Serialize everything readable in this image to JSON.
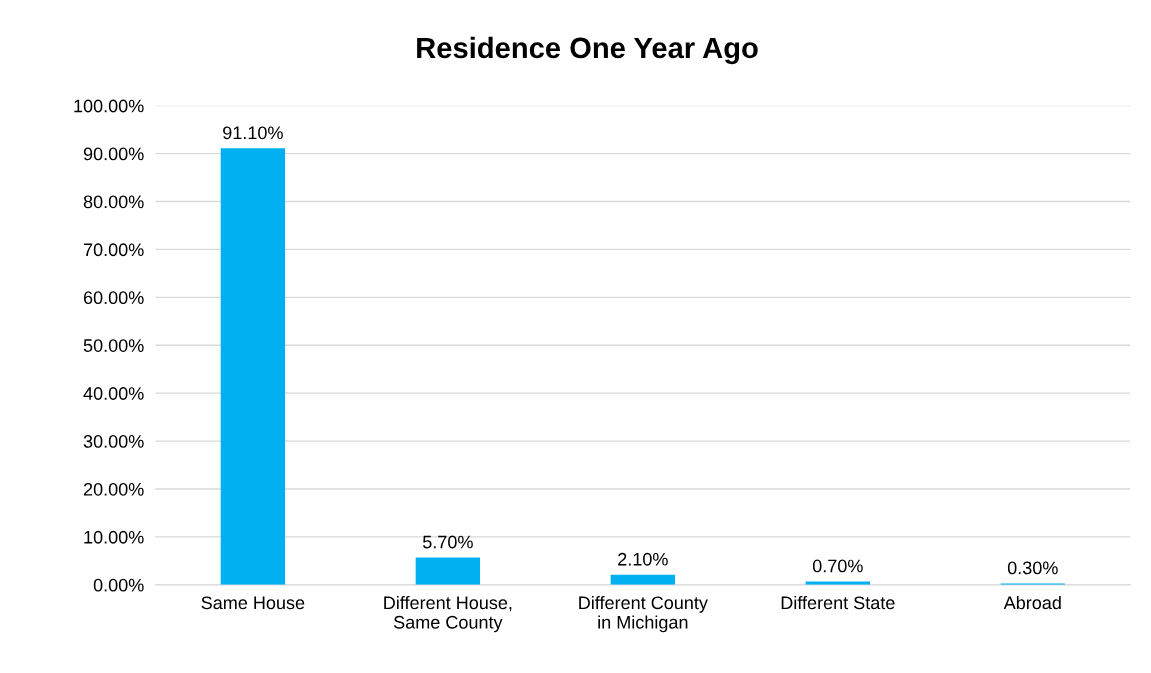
{
  "chart_data": {
    "type": "bar",
    "title": "Residence One Year Ago",
    "categories": [
      "Same House",
      "Different House,\nSame County",
      "Different County\nin Michigan",
      "Different State",
      "Abroad"
    ],
    "values": [
      91.1,
      5.7,
      2.1,
      0.7,
      0.3
    ],
    "value_labels": [
      "91.10%",
      "5.70%",
      "2.10%",
      "0.70%",
      "0.30%"
    ],
    "color": "#00b0f0",
    "ylim": [
      0,
      100
    ],
    "yticks": [
      {
        "value": 0,
        "label": "0.00%"
      },
      {
        "value": 10,
        "label": "10.00%"
      },
      {
        "value": 20,
        "label": "20.00%"
      },
      {
        "value": 30,
        "label": "30.00%"
      },
      {
        "value": 40,
        "label": "40.00%"
      },
      {
        "value": 50,
        "label": "50.00%"
      },
      {
        "value": 60,
        "label": "60.00%"
      },
      {
        "value": 70,
        "label": "70.00%"
      },
      {
        "value": 80,
        "label": "80.00%"
      },
      {
        "value": 90,
        "label": "90.00%"
      },
      {
        "value": 100,
        "label": "100.00%"
      }
    ],
    "grid": "y"
  }
}
